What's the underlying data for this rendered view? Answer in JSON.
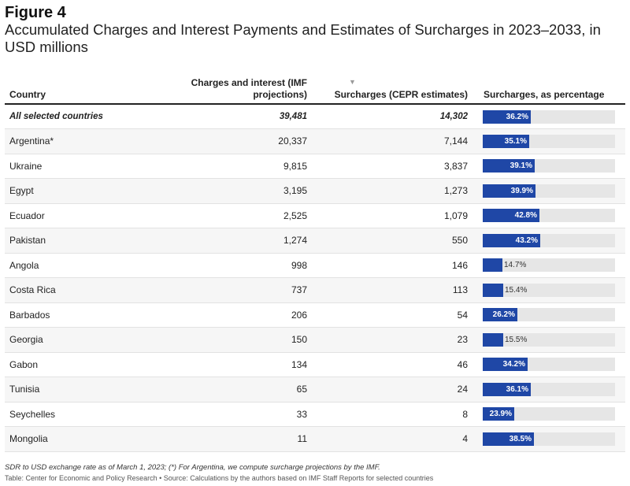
{
  "figure_label": "Figure 4",
  "title": "Accumulated Charges and Interest Payments and Estimates of Surcharges in 2023–2033, in USD millions",
  "sort_indicator": "▼",
  "footnote": "SDR to USD exchange rate as of March 1, 2023; (*) For Argentina, we compute surcharge projections by the IMF.",
  "source": "Table: Center for Economic and Policy Research • Source: Calculations by the authors based on IMF Staff Reports for selected countries",
  "colors": {
    "bar": "#1f47a6",
    "track": "#e6e6e6",
    "stripe": "#f6f6f6"
  },
  "chart_data": {
    "type": "table",
    "columns": [
      "Country",
      "Charges and interest (IMF projections)",
      "Surcharges (CEPR estimates)",
      "Surcharges, as percentage"
    ],
    "bar_scale_max": 100,
    "rows": [
      {
        "country": "All selected countries",
        "charges": "39,481",
        "surcharges": "14,302",
        "pct": 36.2,
        "pct_label": "36.2%",
        "total": true
      },
      {
        "country": "Argentina*",
        "charges": "20,337",
        "surcharges": "7,144",
        "pct": 35.1,
        "pct_label": "35.1%"
      },
      {
        "country": "Ukraine",
        "charges": "9,815",
        "surcharges": "3,837",
        "pct": 39.1,
        "pct_label": "39.1%"
      },
      {
        "country": "Egypt",
        "charges": "3,195",
        "surcharges": "1,273",
        "pct": 39.9,
        "pct_label": "39.9%"
      },
      {
        "country": "Ecuador",
        "charges": "2,525",
        "surcharges": "1,079",
        "pct": 42.8,
        "pct_label": "42.8%"
      },
      {
        "country": "Pakistan",
        "charges": "1,274",
        "surcharges": "550",
        "pct": 43.2,
        "pct_label": "43.2%"
      },
      {
        "country": "Angola",
        "charges": "998",
        "surcharges": "146",
        "pct": 14.7,
        "pct_label": "14.7%"
      },
      {
        "country": "Costa Rica",
        "charges": "737",
        "surcharges": "113",
        "pct": 15.4,
        "pct_label": "15.4%"
      },
      {
        "country": "Barbados",
        "charges": "206",
        "surcharges": "54",
        "pct": 26.2,
        "pct_label": "26.2%"
      },
      {
        "country": "Georgia",
        "charges": "150",
        "surcharges": "23",
        "pct": 15.5,
        "pct_label": "15.5%"
      },
      {
        "country": "Gabon",
        "charges": "134",
        "surcharges": "46",
        "pct": 34.2,
        "pct_label": "34.2%"
      },
      {
        "country": "Tunisia",
        "charges": "65",
        "surcharges": "24",
        "pct": 36.1,
        "pct_label": "36.1%"
      },
      {
        "country": "Seychelles",
        "charges": "33",
        "surcharges": "8",
        "pct": 23.9,
        "pct_label": "23.9%"
      },
      {
        "country": "Mongolia",
        "charges": "11",
        "surcharges": "4",
        "pct": 38.5,
        "pct_label": "38.5%"
      }
    ]
  }
}
